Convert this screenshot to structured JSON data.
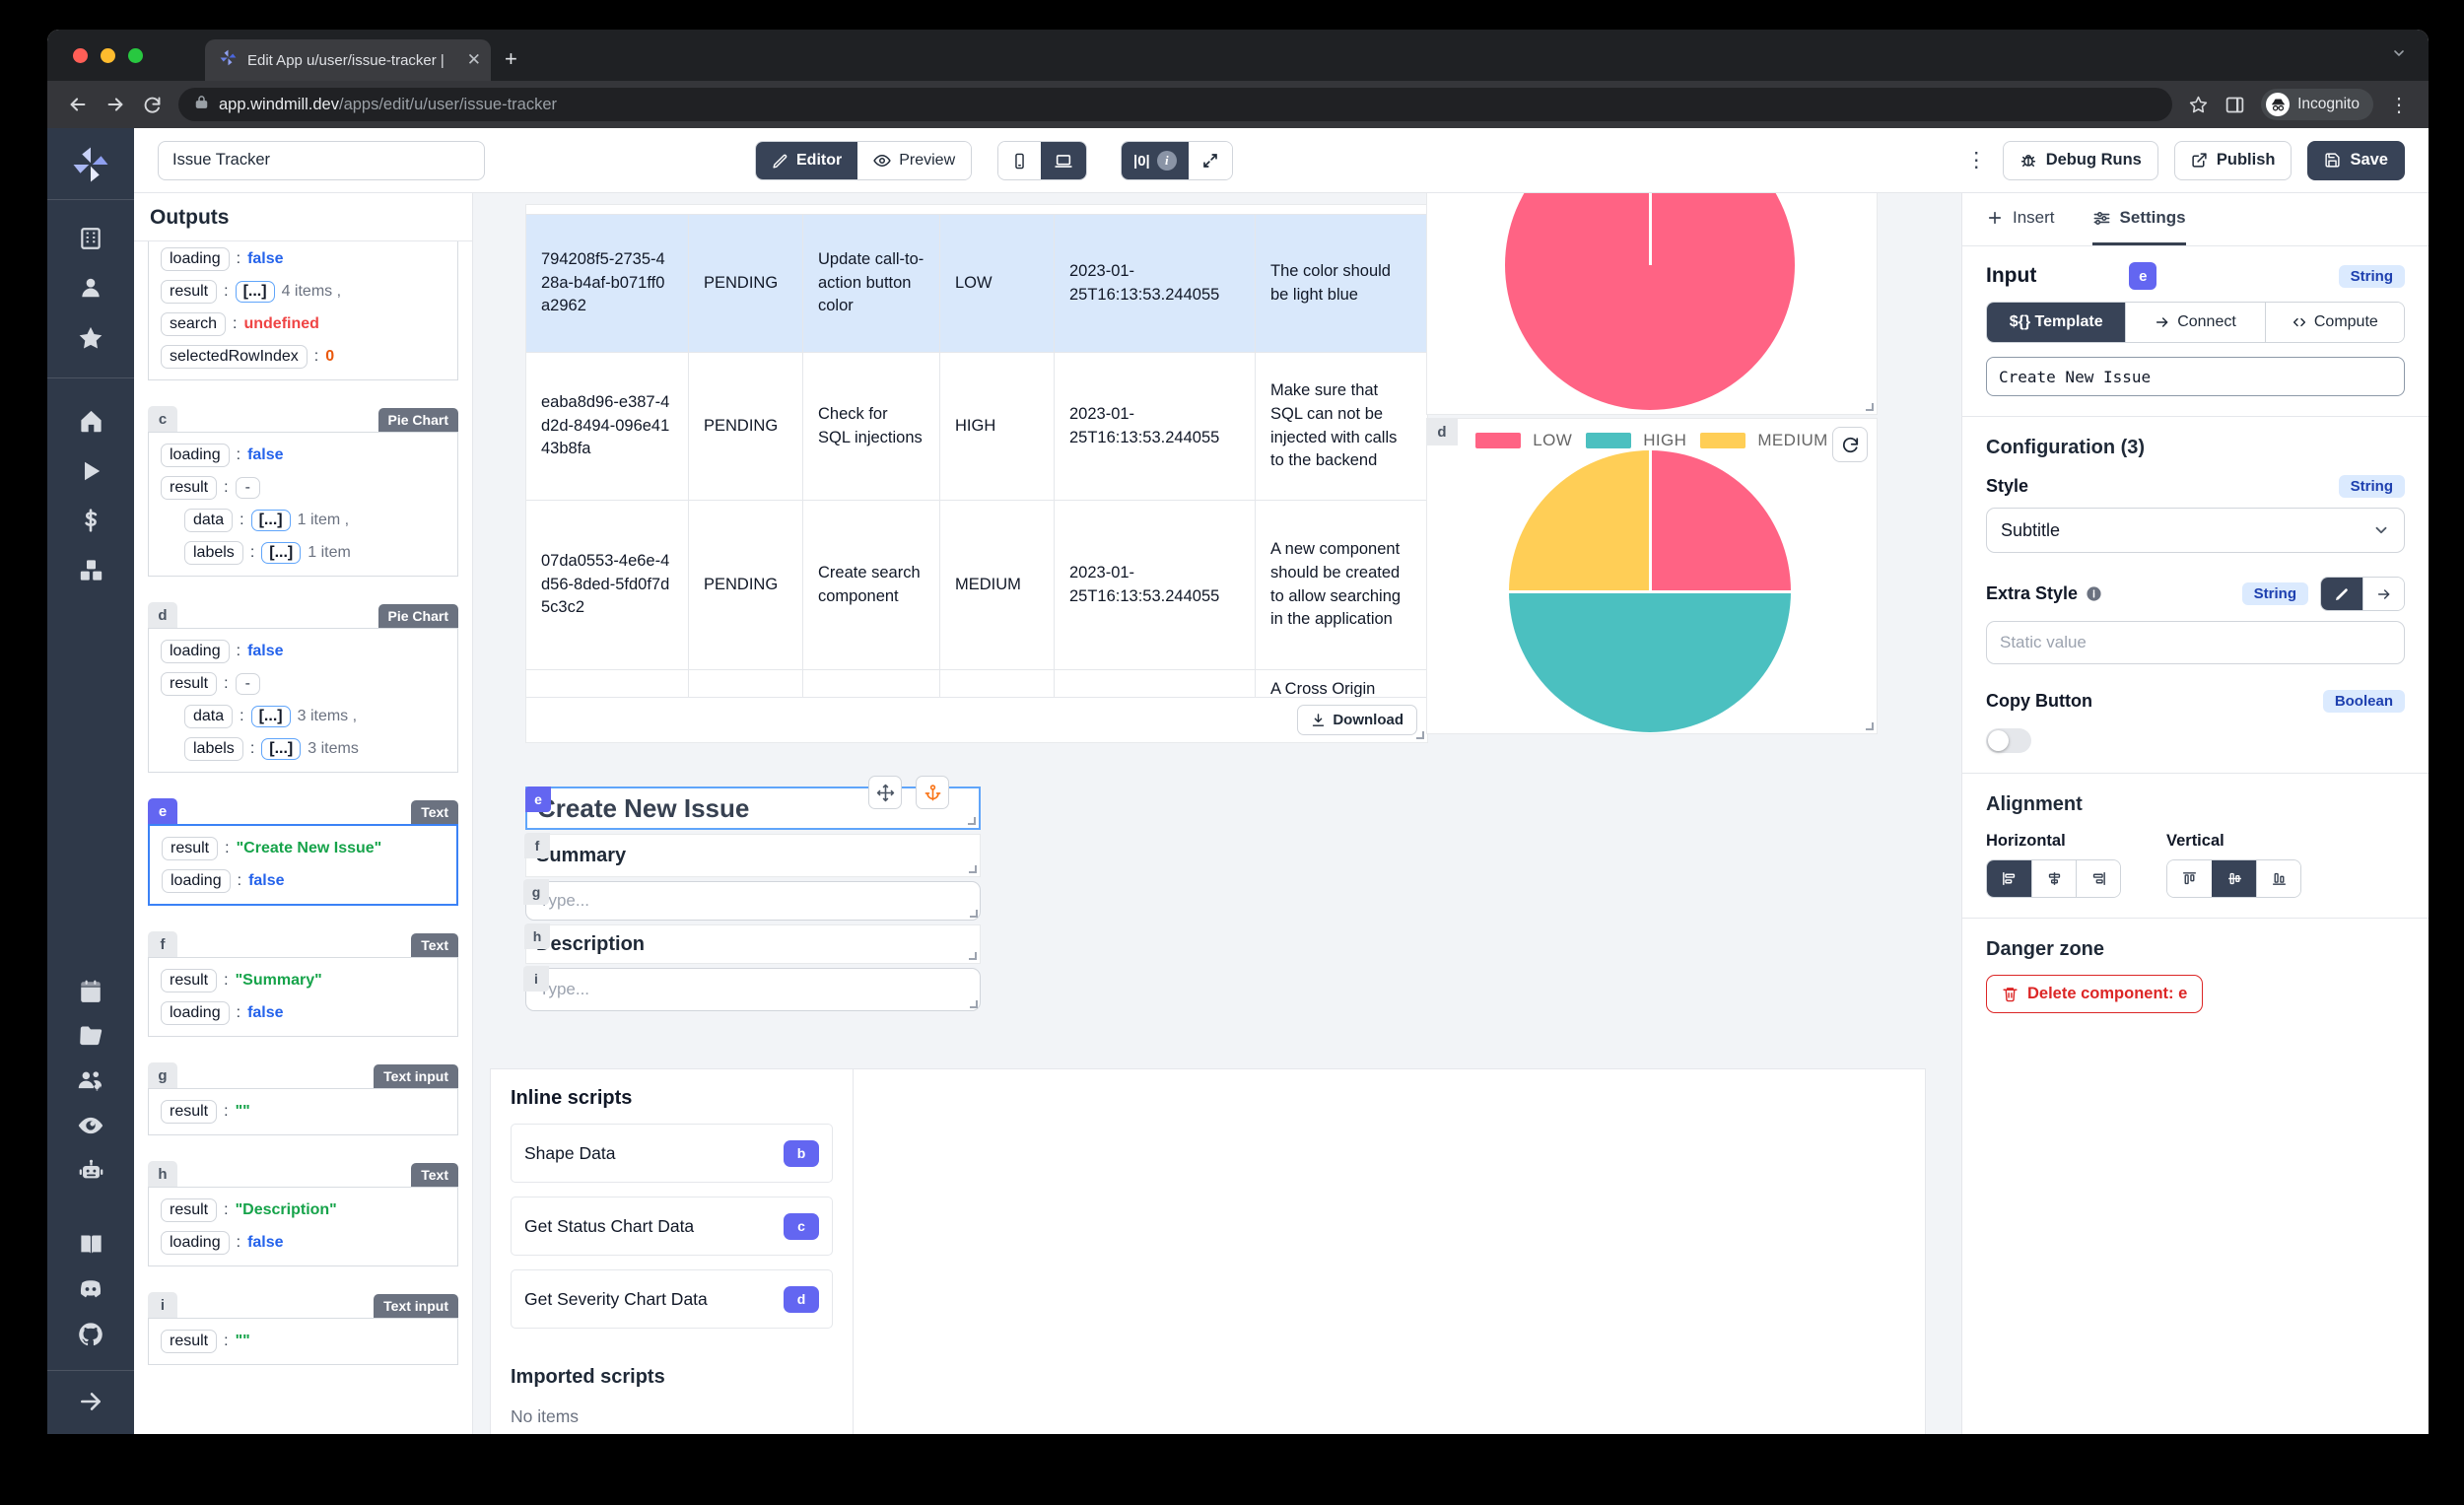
{
  "browser": {
    "tab_title": "Edit App u/user/issue-tracker |",
    "new_tab": "+",
    "url_host": "app.windmill.dev",
    "url_path": "/apps/edit/u/user/issue-tracker",
    "incognito_label": "Incognito"
  },
  "toolbar": {
    "app_title": "Issue Tracker",
    "editor_label": "Editor",
    "preview_label": "Preview",
    "zero_toggle": "|0|",
    "debug_runs_label": "Debug Runs",
    "publish_label": "Publish",
    "save_label": "Save"
  },
  "outputs": {
    "title": "Outputs",
    "groups": [
      {
        "letter": "",
        "type": "",
        "cut": true,
        "rows": [
          {
            "key": "loading",
            "v": "false",
            "cls": "v-blue"
          },
          {
            "key": "result",
            "arr": "[...]",
            "suffix": "4 items ,"
          },
          {
            "key": "search",
            "v": "undefined",
            "cls": "v-red"
          },
          {
            "key": "selectedRowIndex",
            "v": "0",
            "cls": "v-orange"
          }
        ]
      },
      {
        "letter": "c",
        "type": "Pie Chart",
        "rows": [
          {
            "key": "loading",
            "v": "false",
            "cls": "v-blue"
          },
          {
            "key": "result",
            "dash": "-"
          },
          {
            "key": "data",
            "ind": true,
            "arr": "[...]",
            "suffix": "1 item ,"
          },
          {
            "key": "labels",
            "ind": true,
            "arr": "[...]",
            "suffix": "1 item"
          }
        ]
      },
      {
        "letter": "d",
        "type": "Pie Chart",
        "rows": [
          {
            "key": "loading",
            "v": "false",
            "cls": "v-blue"
          },
          {
            "key": "result",
            "dash": "-"
          },
          {
            "key": "data",
            "ind": true,
            "arr": "[...]",
            "suffix": "3 items ,"
          },
          {
            "key": "labels",
            "ind": true,
            "arr": "[...]",
            "suffix": "3 items"
          }
        ]
      },
      {
        "letter": "e",
        "type": "Text",
        "selected": true,
        "rows": [
          {
            "key": "result",
            "v": "\"Create New Issue\"",
            "cls": "v-green"
          },
          {
            "key": "loading",
            "v": "false",
            "cls": "v-blue"
          }
        ]
      },
      {
        "letter": "f",
        "type": "Text",
        "rows": [
          {
            "key": "result",
            "v": "\"Summary\"",
            "cls": "v-green"
          },
          {
            "key": "loading",
            "v": "false",
            "cls": "v-blue"
          }
        ]
      },
      {
        "letter": "g",
        "type": "Text input",
        "rows": [
          {
            "key": "result",
            "v": "\"\"",
            "cls": "v-green"
          }
        ]
      },
      {
        "letter": "h",
        "type": "Text",
        "rows": [
          {
            "key": "result",
            "v": "\"Description\"",
            "cls": "v-green"
          },
          {
            "key": "loading",
            "v": "false",
            "cls": "v-blue"
          }
        ]
      },
      {
        "letter": "i",
        "type": "Text input",
        "rows": [
          {
            "key": "result",
            "v": "\"\"",
            "cls": "v-green"
          }
        ]
      }
    ]
  },
  "table": {
    "download_label": "Download",
    "rows": [
      {
        "selected": true,
        "cells": [
          "794208f5-2735-428a-b4af-b071ff0a2962",
          "PENDING",
          "Update call-to-action button color",
          "LOW",
          "2023-01-25T16:13:53.244055",
          "The color should be light blue"
        ]
      },
      {
        "cells": [
          "eaba8d96-e387-4d2d-8494-096e4143b8fa",
          "PENDING",
          "Check for SQL injections",
          "HIGH",
          "2023-01-25T16:13:53.244055",
          "Make sure that SQL can not be injected with calls to the backend"
        ]
      },
      {
        "cells": [
          "07da0553-4e6e-4d56-8ded-5fd0f7d5c3c2",
          "PENDING",
          "Create search component",
          "MEDIUM",
          "2023-01-25T16:13:53.244055",
          "A new component should be created to allow searching in the application"
        ]
      },
      {
        "partial": true,
        "cells": [
          "",
          "",
          "",
          "",
          "",
          "A Cross Origin"
        ]
      }
    ]
  },
  "charts": {
    "d_letter": "d",
    "legend": [
      {
        "label": "LOW",
        "color": "#FF6384"
      },
      {
        "label": "HIGH",
        "color": "#4BC0C0"
      },
      {
        "label": "MEDIUM",
        "color": "#FFCE56"
      }
    ]
  },
  "chart_data": [
    {
      "type": "pie",
      "component": "c",
      "title": "",
      "values": [
        100
      ],
      "colors": [
        "#FF6384"
      ],
      "note": "single full slice, legend hidden (scrolled out of view)"
    },
    {
      "type": "pie",
      "component": "d",
      "title": "",
      "categories": [
        "LOW",
        "HIGH",
        "MEDIUM"
      ],
      "values": [
        25,
        50,
        25
      ],
      "colors": [
        "#FF6384",
        "#4BC0C0",
        "#FFCE56"
      ],
      "legend_position": "top"
    }
  ],
  "form": {
    "e_badge": "e",
    "e_text": "Create New Issue",
    "f_badge": "f",
    "f_text": "Summary",
    "g_badge": "g",
    "g_placeholder": "Type...",
    "h_badge": "h",
    "h_text": "Description",
    "i_badge": "i",
    "i_placeholder": "Type..."
  },
  "scripts": {
    "inline_title": "Inline scripts",
    "items": [
      {
        "label": "Shape Data",
        "badge": "b"
      },
      {
        "label": "Get Status Chart Data",
        "badge": "c"
      },
      {
        "label": "Get Severity Chart Data",
        "badge": "d"
      }
    ],
    "imported_title": "Imported scripts",
    "empty": "No items"
  },
  "settings": {
    "insert_tab": "Insert",
    "settings_tab": "Settings",
    "input_label": "Input",
    "input_badge": "e",
    "input_type": "String",
    "template_label": "${} Template",
    "connect_label": "Connect",
    "compute_label": "Compute",
    "input_value": "Create New Issue",
    "config_title": "Configuration (3)",
    "style_label": "Style",
    "style_type": "String",
    "style_value": "Subtitle",
    "extra_style_label": "Extra Style",
    "extra_style_type": "String",
    "extra_placeholder": "Static value",
    "copy_label": "Copy Button",
    "copy_type": "Boolean",
    "alignment_title": "Alignment",
    "horizontal_label": "Horizontal",
    "vertical_label": "Vertical",
    "danger_title": "Danger zone",
    "delete_label": "Delete component: e"
  }
}
